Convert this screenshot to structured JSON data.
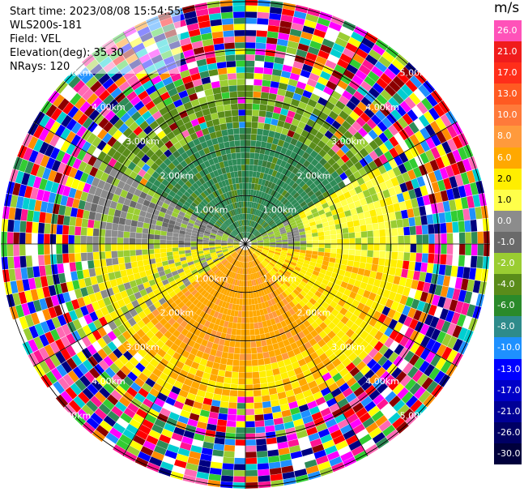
{
  "header": {
    "start_time": "Start time: 2023/08/08 15:54:55",
    "site": "WLS200s-181",
    "field": "Field: VEL",
    "elevation": "Elevation(deg): 35.30",
    "nrays": "NRays: 120"
  },
  "colorbar": {
    "unit": "m/s",
    "levels": [
      {
        "label": "26.0",
        "color": "#ff52b9"
      },
      {
        "label": "21.0",
        "color": "#f01c1c"
      },
      {
        "label": "17.0",
        "color": "#ff2e1a"
      },
      {
        "label": "13.0",
        "color": "#ff5a22"
      },
      {
        "label": "10.0",
        "color": "#ff7a3a"
      },
      {
        "label": "8.0",
        "color": "#ff9a3c"
      },
      {
        "label": "6.0",
        "color": "#ffa800"
      },
      {
        "label": "2.0",
        "color": "#ffee00"
      },
      {
        "label": "1.0",
        "color": "#ffff4a"
      },
      {
        "label": "0.0",
        "color": "#8c8c8c"
      },
      {
        "label": "-1.0",
        "color": "#6a6a6a"
      },
      {
        "label": "-2.0",
        "color": "#9acd32"
      },
      {
        "label": "-4.0",
        "color": "#5a8c1a"
      },
      {
        "label": "-6.0",
        "color": "#2a8a2a"
      },
      {
        "label": "-8.0",
        "color": "#2e8b8b"
      },
      {
        "label": "-10.0",
        "color": "#1e90ff"
      },
      {
        "label": "-13.0",
        "color": "#0000ff"
      },
      {
        "label": "-17.0",
        "color": "#0000c8"
      },
      {
        "label": "-21.0",
        "color": "#000096"
      },
      {
        "label": "-26.0",
        "color": "#000064"
      },
      {
        "label": "-30.0",
        "color": "#00003c"
      }
    ]
  },
  "rings": [
    {
      "label": "1.00km",
      "km": 1
    },
    {
      "label": "2.00km",
      "km": 2
    },
    {
      "label": "3.00km",
      "km": 3
    },
    {
      "label": "4.00km",
      "km": 4
    },
    {
      "label": "5.00km",
      "km": 5
    }
  ],
  "ppi": {
    "max_range_km": 5.05,
    "nrays": 120,
    "gates": 40,
    "noise_palette": [
      "#ff1493",
      "#ff69b4",
      "#ff00ff",
      "#000080",
      "#0000ff",
      "#ffff00",
      "#ff8c00",
      "#32cd32",
      "#2e8b57",
      "#1e90ff",
      "#ff0000",
      "#8b0000",
      "#ffffff",
      "#00ced1",
      "#9acd32"
    ]
  }
}
